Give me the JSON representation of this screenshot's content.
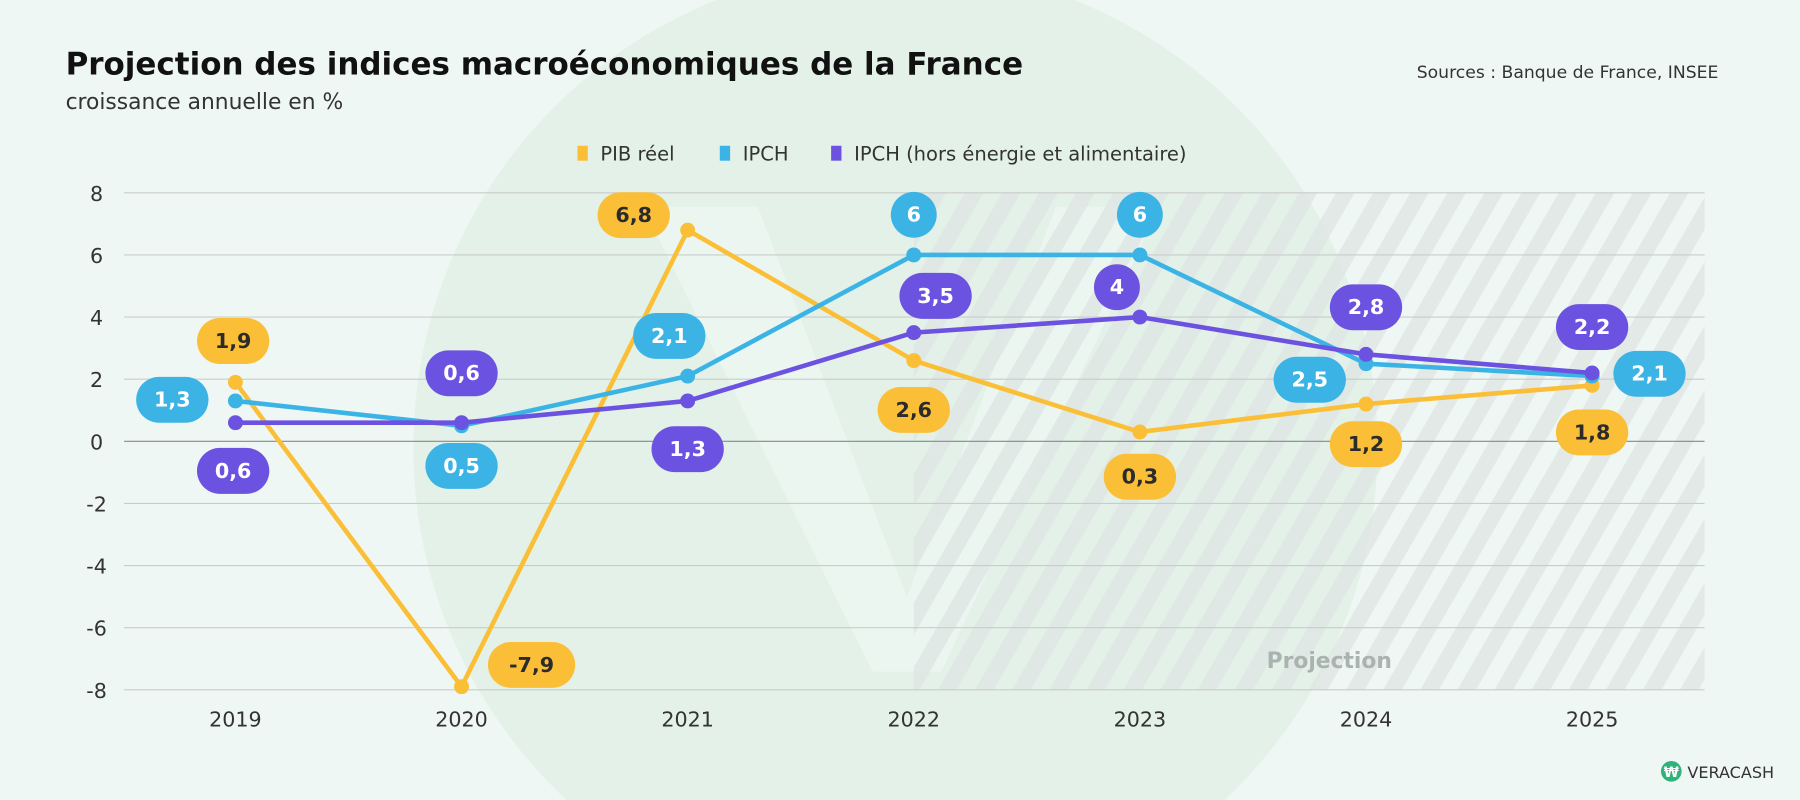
{
  "header": {
    "title": "Projection des indices macroéconomiques de la France",
    "subtitle": "croissance annuelle en %",
    "sources": "Sources : Banque de France, INSEE"
  },
  "brand": {
    "logo_text": "VERACASH"
  },
  "chart_data": {
    "type": "line",
    "title": "Projection des indices macroéconomiques de la France",
    "subtitle": "croissance annuelle en %",
    "categories": [
      "2019",
      "2020",
      "2021",
      "2022",
      "2023",
      "2024",
      "2025"
    ],
    "ylim": [
      -8,
      8
    ],
    "yticks": [
      8,
      6,
      4,
      2,
      0,
      -2,
      -4,
      -6,
      -8
    ],
    "grid": true,
    "legend_position": "top",
    "projection_label": "Projection",
    "projection_from": "2022",
    "series": [
      {
        "name": "PIB réel",
        "color": "#fbbf37",
        "text_color": "#2b2b2b",
        "values": [
          1.9,
          -7.9,
          6.8,
          2.6,
          0.3,
          1.2,
          1.8
        ],
        "labels": [
          "1,9",
          "-7,9",
          "6,8",
          "2,6",
          "0,3",
          "1,2",
          "1,8"
        ]
      },
      {
        "name": "IPCH",
        "color": "#3bb4e5",
        "text_color": "#ffffff",
        "values": [
          1.3,
          0.5,
          2.1,
          6,
          6,
          2.5,
          2.1
        ],
        "labels": [
          "1,3",
          "0,5",
          "2,1",
          "6",
          "6",
          "2,5",
          "2,1"
        ]
      },
      {
        "name": "IPCH (hors énergie et alimentaire)",
        "color": "#6b52e0",
        "text_color": "#ffffff",
        "values": [
          0.6,
          0.6,
          1.3,
          3.5,
          4,
          2.8,
          2.2
        ],
        "labels": [
          "0,6",
          "0,6",
          "1,3",
          "3,5",
          "4",
          "2,8",
          "2,2"
        ]
      }
    ]
  }
}
